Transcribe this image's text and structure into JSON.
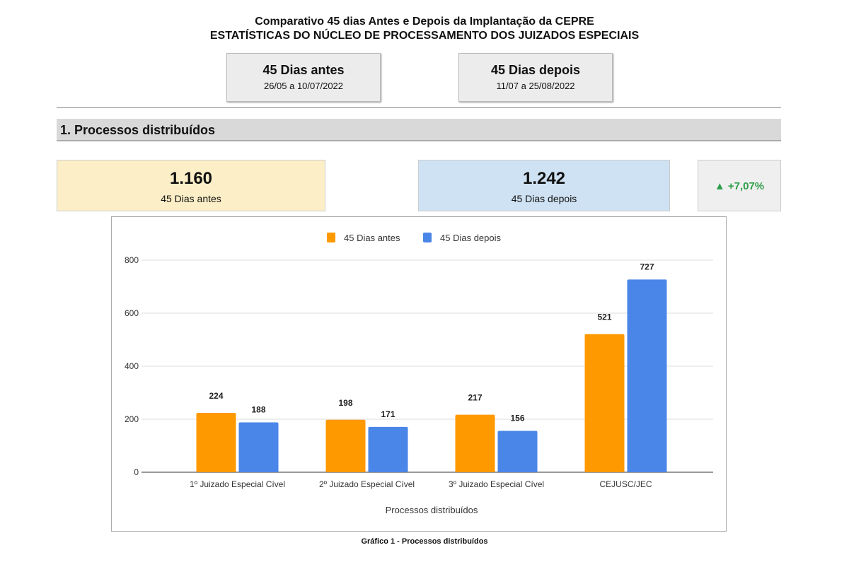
{
  "header": {
    "title": "Comparativo 45 dias Antes e Depois da Implantação da CEPRE",
    "subtitle": "ESTATÍSTICAS DO NÚCLEO DE PROCESSAMENTO DOS JUIZADOS ESPECIAIS"
  },
  "periods": [
    {
      "label": "45 Dias antes",
      "range": "26/05 a 10/07/2022"
    },
    {
      "label": "45 Dias depois",
      "range": "11/07 a 25/08/2022"
    }
  ],
  "section": {
    "title": "1. Processos distribuídos"
  },
  "kpis": [
    {
      "value": "1.160",
      "label": "45 Dias antes",
      "color": "#fcefc7"
    },
    {
      "value": "1.242",
      "label": "45 Dias depois",
      "color": "#cfe2f3"
    }
  ],
  "delta": {
    "text": "▲ +7,07%",
    "color": "#2e9e4a",
    "icon": "triangle-up-icon"
  },
  "chart_data": {
    "type": "bar",
    "categories": [
      "1º Juizado Especial Cível",
      "2º Juizado Especial Cível",
      "3º Juizado Especial Cível",
      "CEJUSC/JEC"
    ],
    "series": [
      {
        "name": "45 Dias antes",
        "values": [
          224,
          198,
          217,
          521
        ],
        "color": "#ff9900"
      },
      {
        "name": "45 Dias depois",
        "values": [
          188,
          171,
          156,
          727
        ],
        "color": "#4a86e8"
      }
    ],
    "xlabel": "Processos distribuídos",
    "ylabel": "",
    "ylim": [
      0,
      800
    ],
    "yticks": [
      0,
      200,
      400,
      600,
      800
    ],
    "grid": true,
    "legend": "top",
    "data_labels": true
  },
  "caption": "Gráfico 1 - Processos distribuídos"
}
